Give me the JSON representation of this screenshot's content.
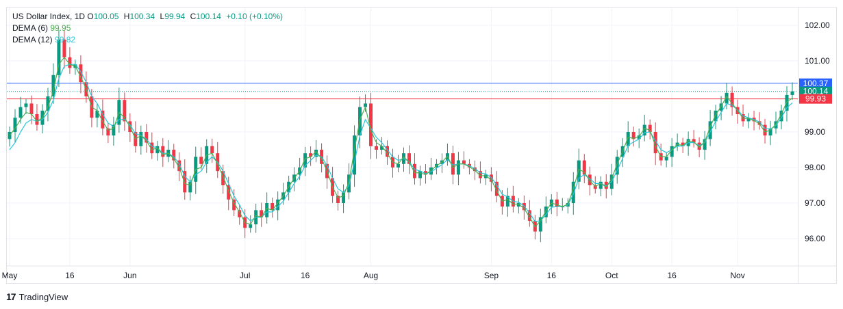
{
  "legend": {
    "symbol": "US Dollar Index, 1D",
    "o_label": "O",
    "o_value": "100.05",
    "h_label": "H",
    "h_value": "100.34",
    "l_label": "L",
    "l_value": "99.94",
    "c_label": "C",
    "c_value": "100.14",
    "change": "+0.10 (+0.10%)",
    "dema6_label": "DEMA (6)",
    "dema6_value": "99.95",
    "dema12_label": "DEMA (12)",
    "dema12_value": "99.82"
  },
  "brand": {
    "logo": "17",
    "name": "TradingView"
  },
  "colors": {
    "up": "#089981",
    "down": "#f23645",
    "dema6": "#4caf50",
    "dema12": "#26c6da",
    "hline_blue": "#2962ff",
    "hline_red": "#f23645",
    "hline_green": "#089981",
    "grid": "#f0f3fa",
    "text": "#131722"
  },
  "chart_data": {
    "type": "candlestick",
    "title": "US Dollar Index, 1D",
    "ylim": [
      95.25,
      102.5
    ],
    "y_ticks": [
      "102.00",
      "101.00",
      "99.00",
      "98.00",
      "97.00",
      "96.00"
    ],
    "x_ticks": [
      {
        "label": "May",
        "index": 0
      },
      {
        "label": "16",
        "index": 11
      },
      {
        "label": "Jun",
        "index": 22
      },
      {
        "label": "Jul",
        "index": 43
      },
      {
        "label": "16",
        "index": 54
      },
      {
        "label": "Aug",
        "index": 66
      },
      {
        "label": "Sep",
        "index": 88
      },
      {
        "label": "16",
        "index": 99
      },
      {
        "label": "Oct",
        "index": 110
      },
      {
        "label": "16",
        "index": 121
      },
      {
        "label": "Nov",
        "index": 133
      }
    ],
    "horizontal_lines": [
      {
        "value": 100.37,
        "label": "100.37",
        "color": "#2962ff",
        "style": "solid"
      },
      {
        "value": 100.14,
        "label": "100.14",
        "color": "#089981",
        "style": "dotted"
      },
      {
        "value": 99.93,
        "label": "99.93",
        "color": "#f23645",
        "style": "solid"
      }
    ],
    "close": [
      99.0,
      99.4,
      99.7,
      99.8,
      99.5,
      99.2,
      99.6,
      100.0,
      100.6,
      101.6,
      101.1,
      100.8,
      100.9,
      100.4,
      100.0,
      99.4,
      99.6,
      99.1,
      98.9,
      99.2,
      99.9,
      99.3,
      99.0,
      98.6,
      99.0,
      98.7,
      98.4,
      98.6,
      98.3,
      98.5,
      98.2,
      97.9,
      97.3,
      97.6,
      98.3,
      98.1,
      98.6,
      98.4,
      97.9,
      97.5,
      97.1,
      96.8,
      96.6,
      96.3,
      96.4,
      96.8,
      96.6,
      97.0,
      96.8,
      97.1,
      97.3,
      97.6,
      97.8,
      98.0,
      98.4,
      98.3,
      98.5,
      98.1,
      97.7,
      97.2,
      97.0,
      97.3,
      97.8,
      98.9,
      99.7,
      99.8,
      98.6,
      98.5,
      98.6,
      98.3,
      98.0,
      98.1,
      98.4,
      98.1,
      97.7,
      97.9,
      97.8,
      98.0,
      98.1,
      98.2,
      98.4,
      97.8,
      98.2,
      98.1,
      98.0,
      97.9,
      97.7,
      97.8,
      97.6,
      97.2,
      96.9,
      97.2,
      96.9,
      97.0,
      96.8,
      96.5,
      96.2,
      96.6,
      96.9,
      97.1,
      96.9,
      96.9,
      97.0,
      97.6,
      98.2,
      97.8,
      97.5,
      97.4,
      97.6,
      97.4,
      97.8,
      98.3,
      98.6,
      99.0,
      98.8,
      98.9,
      99.2,
      99.0,
      98.4,
      98.2,
      98.3,
      98.6,
      98.7,
      98.6,
      98.8,
      98.7,
      98.5,
      98.8,
      99.3,
      99.6,
      99.8,
      100.1,
      99.7,
      99.5,
      99.3,
      99.4,
      99.3,
      99.2,
      98.9,
      99.1,
      99.3,
      99.6,
      100.04,
      100.14
    ],
    "dema6": [
      98.9,
      99.1,
      99.35,
      99.55,
      99.5,
      99.3,
      99.4,
      99.7,
      100.15,
      100.9,
      101.1,
      100.9,
      100.85,
      100.55,
      100.2,
      99.7,
      99.6,
      99.3,
      99.05,
      99.1,
      99.55,
      99.4,
      99.15,
      98.8,
      98.9,
      98.75,
      98.5,
      98.55,
      98.35,
      98.4,
      98.25,
      98.0,
      97.55,
      97.5,
      97.95,
      98.0,
      98.35,
      98.4,
      98.1,
      97.75,
      97.35,
      97.0,
      96.75,
      96.45,
      96.4,
      96.65,
      96.6,
      96.85,
      96.8,
      97.0,
      97.2,
      97.45,
      97.7,
      97.9,
      98.25,
      98.3,
      98.45,
      98.25,
      97.9,
      97.45,
      97.15,
      97.2,
      97.6,
      98.5,
      99.35,
      99.7,
      99.05,
      98.7,
      98.6,
      98.4,
      98.15,
      98.1,
      98.3,
      98.15,
      97.85,
      97.85,
      97.8,
      97.92,
      98.05,
      98.15,
      98.32,
      98.0,
      98.1,
      98.1,
      98.02,
      97.92,
      97.77,
      97.77,
      97.65,
      97.35,
      97.05,
      97.1,
      96.97,
      96.97,
      96.85,
      96.6,
      96.33,
      96.5,
      96.78,
      97.0,
      96.95,
      96.9,
      96.97,
      97.4,
      97.95,
      97.87,
      97.62,
      97.47,
      97.55,
      97.45,
      97.68,
      98.1,
      98.45,
      98.85,
      98.82,
      98.87,
      99.1,
      99.05,
      98.6,
      98.3,
      98.3,
      98.5,
      98.65,
      98.62,
      98.75,
      98.72,
      98.57,
      98.72,
      99.15,
      99.48,
      99.72,
      100.0,
      99.8,
      99.6,
      99.38,
      99.38,
      99.32,
      99.23,
      99.0,
      99.05,
      99.22,
      99.5,
      99.85,
      99.95
    ],
    "dema12": [
      98.5,
      98.7,
      99.0,
      99.25,
      99.35,
      99.3,
      99.35,
      99.55,
      99.9,
      100.5,
      100.85,
      100.9,
      100.9,
      100.7,
      100.4,
      100.0,
      99.8,
      99.5,
      99.25,
      99.15,
      99.35,
      99.35,
      99.2,
      98.95,
      98.9,
      98.8,
      98.6,
      98.55,
      98.4,
      98.4,
      98.3,
      98.1,
      97.75,
      97.6,
      97.8,
      97.9,
      98.15,
      98.3,
      98.15,
      97.9,
      97.55,
      97.2,
      96.95,
      96.65,
      96.5,
      96.6,
      96.6,
      96.75,
      96.75,
      96.9,
      97.05,
      97.3,
      97.55,
      97.75,
      98.05,
      98.2,
      98.35,
      98.3,
      98.05,
      97.7,
      97.4,
      97.3,
      97.5,
      98.15,
      98.9,
      99.35,
      99.1,
      98.85,
      98.7,
      98.5,
      98.3,
      98.2,
      98.25,
      98.17,
      97.95,
      97.9,
      97.83,
      97.88,
      97.98,
      98.08,
      98.22,
      98.07,
      98.1,
      98.1,
      98.05,
      97.97,
      97.85,
      97.82,
      97.72,
      97.5,
      97.25,
      97.17,
      97.05,
      97.02,
      96.92,
      96.72,
      96.48,
      96.5,
      96.68,
      96.88,
      96.9,
      96.9,
      96.95,
      97.25,
      97.7,
      97.8,
      97.68,
      97.55,
      97.55,
      97.48,
      97.6,
      97.92,
      98.25,
      98.62,
      98.72,
      98.8,
      98.98,
      99.0,
      98.75,
      98.5,
      98.42,
      98.5,
      98.6,
      98.6,
      98.7,
      98.7,
      98.62,
      98.7,
      99.0,
      99.3,
      99.55,
      99.8,
      99.75,
      99.62,
      99.45,
      99.4,
      99.35,
      99.28,
      99.1,
      99.08,
      99.18,
      99.4,
      99.68,
      99.82
    ]
  }
}
